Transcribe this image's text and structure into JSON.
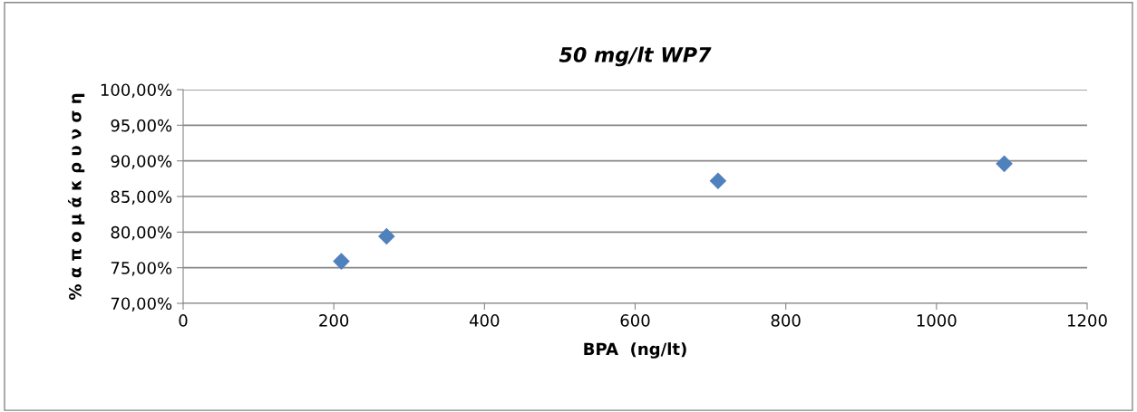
{
  "chart_data": {
    "type": "scatter",
    "title": "50 mg/lt WP7",
    "xlabel": "BPA  (ng/lt)",
    "ylabel": "% α π ο μ ά κ ρ υ ν σ η",
    "x": [
      210,
      270,
      710,
      1090
    ],
    "series": [
      {
        "color": "#4f81bd",
        "values": [
          75.9,
          79.4,
          87.2,
          89.6
        ]
      }
    ],
    "xlim": [
      0,
      1200
    ],
    "xticks": [
      0,
      200,
      400,
      600,
      800,
      1000,
      1200
    ],
    "ylim": [
      70,
      100
    ],
    "yticks": [
      {
        "value": 70,
        "label": "70,00%"
      },
      {
        "value": 75,
        "label": "75,00%"
      },
      {
        "value": 80,
        "label": "80,00%"
      },
      {
        "value": 85,
        "label": "85,00%"
      },
      {
        "value": 90,
        "label": "90,00%"
      },
      {
        "value": 95,
        "label": "95,00%"
      },
      {
        "value": 100,
        "label": "100,00%"
      }
    ],
    "grid": "y",
    "marker": "diamond"
  }
}
